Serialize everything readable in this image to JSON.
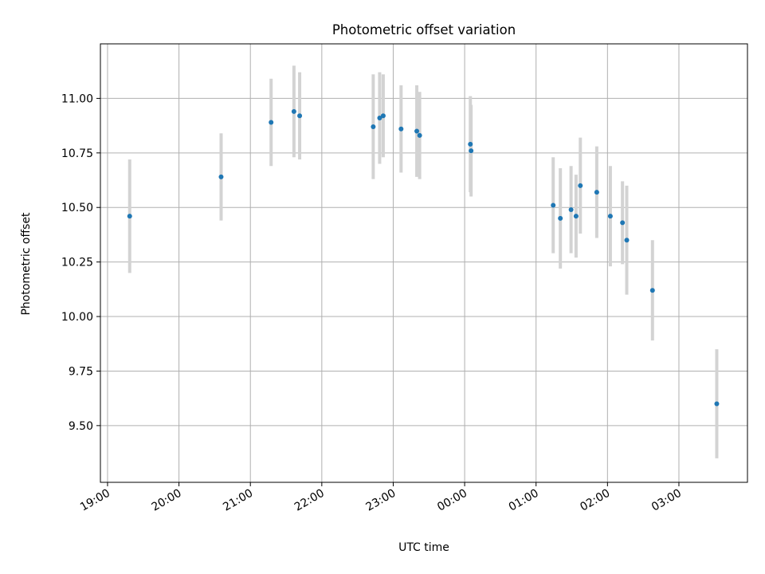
{
  "chart_data": {
    "type": "scatter",
    "title": "Photometric offset variation",
    "xlabel": "UTC time",
    "ylabel": "Photometric offset",
    "x_tick_labels": [
      "19:00",
      "20:00",
      "21:00",
      "22:00",
      "23:00",
      "00:00",
      "01:00",
      "02:00",
      "03:00"
    ],
    "y_ticks": [
      9.5,
      9.75,
      10.0,
      10.25,
      10.5,
      10.75,
      11.0
    ],
    "y_tick_labels": [
      "9.50",
      "9.75",
      "10.00",
      "10.25",
      "10.50",
      "10.75",
      "11.00"
    ],
    "x_unit": "hours after 19:00 UTC",
    "xlim": [
      -0.1,
      8.96
    ],
    "ylim": [
      9.24,
      11.25
    ],
    "grid": true,
    "colors": {
      "marker": "#1f77b4",
      "errorbar": "#d3d3d3",
      "grid": "#b0b0b0"
    },
    "points": [
      {
        "time": "19:18",
        "x": 0.31,
        "y": 10.46,
        "yerr": 0.26
      },
      {
        "time": "20:35",
        "x": 1.59,
        "y": 10.64,
        "yerr": 0.2
      },
      {
        "time": "21:17",
        "x": 2.29,
        "y": 10.89,
        "yerr": 0.2
      },
      {
        "time": "21:36",
        "x": 2.61,
        "y": 10.94,
        "yerr": 0.21
      },
      {
        "time": "21:41",
        "x": 2.69,
        "y": 10.92,
        "yerr": 0.2
      },
      {
        "time": "22:43",
        "x": 3.72,
        "y": 10.87,
        "yerr": 0.24
      },
      {
        "time": "22:49",
        "x": 3.81,
        "y": 10.91,
        "yerr": 0.21
      },
      {
        "time": "22:51",
        "x": 3.86,
        "y": 10.92,
        "yerr": 0.19
      },
      {
        "time": "23:07",
        "x": 4.11,
        "y": 10.86,
        "yerr": 0.2
      },
      {
        "time": "23:20",
        "x": 4.33,
        "y": 10.85,
        "yerr": 0.21
      },
      {
        "time": "23:22",
        "x": 4.37,
        "y": 10.83,
        "yerr": 0.2
      },
      {
        "time": "00:05",
        "x": 5.08,
        "y": 10.79,
        "yerr": 0.22
      },
      {
        "time": "00:05",
        "x": 5.09,
        "y": 10.76,
        "yerr": 0.21
      },
      {
        "time": "01:15",
        "x": 6.24,
        "y": 10.51,
        "yerr": 0.22
      },
      {
        "time": "01:20",
        "x": 6.34,
        "y": 10.45,
        "yerr": 0.23
      },
      {
        "time": "01:29",
        "x": 6.49,
        "y": 10.49,
        "yerr": 0.2
      },
      {
        "time": "01:33",
        "x": 6.56,
        "y": 10.46,
        "yerr": 0.19
      },
      {
        "time": "01:37",
        "x": 6.62,
        "y": 10.6,
        "yerr": 0.22
      },
      {
        "time": "01:51",
        "x": 6.85,
        "y": 10.57,
        "yerr": 0.21
      },
      {
        "time": "02:02",
        "x": 7.04,
        "y": 10.46,
        "yerr": 0.23
      },
      {
        "time": "02:13",
        "x": 7.21,
        "y": 10.43,
        "yerr": 0.19
      },
      {
        "time": "02:16",
        "x": 7.27,
        "y": 10.35,
        "yerr": 0.25
      },
      {
        "time": "02:38",
        "x": 7.63,
        "y": 10.12,
        "yerr": 0.23
      },
      {
        "time": "03:32",
        "x": 8.53,
        "y": 9.6,
        "yerr": 0.25
      }
    ]
  }
}
